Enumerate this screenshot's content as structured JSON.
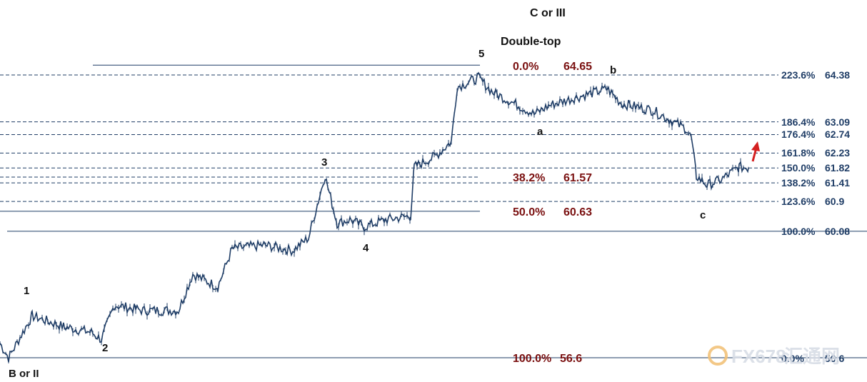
{
  "chart_data": {
    "type": "line",
    "title": "C or III",
    "annotations": {
      "double_top": "Double-top"
    },
    "wave_labels": [
      "B or II",
      "1",
      "2",
      "3",
      "4",
      "5",
      "a",
      "b",
      "c"
    ],
    "fib_left": [
      {
        "pct": "0.0%",
        "value": "64.65"
      },
      {
        "pct": "38.2%",
        "value": "61.57"
      },
      {
        "pct": "50.0%",
        "value": "60.63"
      },
      {
        "pct": "100.0%",
        "value": "56.6"
      }
    ],
    "fib_right": [
      {
        "label": "223.6%",
        "value": "64.38"
      },
      {
        "label": "186.4%",
        "value": "63.09"
      },
      {
        "label": "176.4%",
        "value": "62.74"
      },
      {
        "label": "161.8%",
        "value": "62.23"
      },
      {
        "label": "150.0%",
        "value": "61.82"
      },
      {
        "label": "138.2%",
        "value": "61.41"
      },
      {
        "label": "123.6%",
        "value": "60.9"
      },
      {
        "label": "100.0%",
        "value": "60.08"
      },
      {
        "label": "0.0%",
        "value": "56.6"
      }
    ],
    "ylim": [
      56.4,
      65.3
    ],
    "price_path": [
      [
        0,
        57.0
      ],
      [
        12,
        56.6
      ],
      [
        45,
        57.75
      ],
      [
        90,
        57.45
      ],
      [
        128,
        57.3
      ],
      [
        142,
        57.1
      ],
      [
        160,
        58.05
      ],
      [
        200,
        57.9
      ],
      [
        250,
        57.9
      ],
      [
        270,
        58.9
      ],
      [
        305,
        58.55
      ],
      [
        325,
        59.6
      ],
      [
        370,
        59.7
      ],
      [
        410,
        59.55
      ],
      [
        432,
        59.9
      ],
      [
        455,
        61.6
      ],
      [
        472,
        60.3
      ],
      [
        490,
        60.4
      ],
      [
        510,
        60.2
      ],
      [
        540,
        60.4
      ],
      [
        575,
        60.5
      ],
      [
        580,
        61.85
      ],
      [
        610,
        62.15
      ],
      [
        632,
        62.55
      ],
      [
        640,
        64.05
      ],
      [
        670,
        64.3
      ],
      [
        690,
        63.9
      ],
      [
        730,
        63.5
      ],
      [
        748,
        63.3
      ],
      [
        770,
        63.55
      ],
      [
        805,
        63.75
      ],
      [
        850,
        64.0
      ],
      [
        870,
        63.6
      ],
      [
        915,
        63.4
      ],
      [
        960,
        62.9
      ],
      [
        968,
        62.65
      ],
      [
        975,
        61.6
      ],
      [
        990,
        61.35
      ],
      [
        1010,
        61.5
      ],
      [
        1035,
        61.85
      ],
      [
        1048,
        61.82
      ]
    ],
    "arrow_color": "#d42020",
    "line_color": "#1f3d66"
  },
  "watermark": {
    "text": "FX678",
    "cn_text": "汇通网"
  }
}
